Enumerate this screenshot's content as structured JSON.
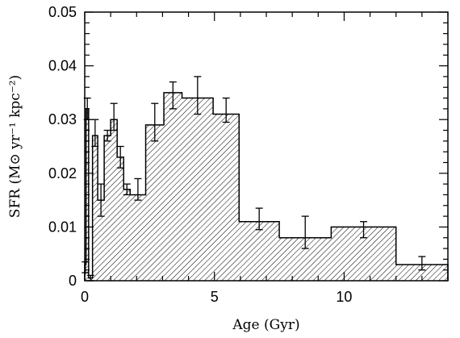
{
  "chart_data": {
    "type": "histogram",
    "title": "",
    "xlabel": "Age (Gyr)",
    "ylabel": "SFR (M⊙ yr⁻¹ kpc⁻²)",
    "xlim": [
      0,
      14
    ],
    "ylim": [
      0,
      0.05
    ],
    "x_ticks": [
      0,
      5,
      10
    ],
    "x_tick_labels": [
      "0",
      "5",
      "10"
    ],
    "y_ticks": [
      0,
      0.01,
      0.02,
      0.03,
      0.04,
      0.05
    ],
    "y_tick_labels": [
      "0",
      "0.01",
      "0.02",
      "0.03",
      "0.04",
      "0.05"
    ],
    "fill": "hatched",
    "grid": false,
    "bins": [
      {
        "x0": 0.0,
        "x1": 0.05,
        "value": 0.003,
        "err_lo": 0.0015,
        "err_hi": 0.0035
      },
      {
        "x0": 0.05,
        "x1": 0.15,
        "value": 0.032,
        "err_lo": 0.03,
        "err_hi": 0.034
      },
      {
        "x0": 0.15,
        "x1": 0.3,
        "value": 0.0005,
        "err_lo": 0.0,
        "err_hi": 0.001
      },
      {
        "x0": 0.3,
        "x1": 0.5,
        "value": 0.027,
        "err_lo": 0.025,
        "err_hi": 0.03
      },
      {
        "x0": 0.5,
        "x1": 0.75,
        "value": 0.015,
        "err_lo": 0.012,
        "err_hi": 0.018
      },
      {
        "x0": 0.75,
        "x1": 1.0,
        "value": 0.027,
        "err_lo": 0.026,
        "err_hi": 0.028
      },
      {
        "x0": 1.0,
        "x1": 1.25,
        "value": 0.03,
        "err_lo": 0.028,
        "err_hi": 0.033
      },
      {
        "x0": 1.25,
        "x1": 1.5,
        "value": 0.023,
        "err_lo": 0.021,
        "err_hi": 0.025
      },
      {
        "x0": 1.5,
        "x1": 1.75,
        "value": 0.017,
        "err_lo": 0.016,
        "err_hi": 0.018
      },
      {
        "x0": 1.75,
        "x1": 2.35,
        "value": 0.016,
        "err_lo": 0.015,
        "err_hi": 0.019
      },
      {
        "x0": 2.35,
        "x1": 3.05,
        "value": 0.029,
        "err_lo": 0.026,
        "err_hi": 0.033
      },
      {
        "x0": 3.05,
        "x1": 3.75,
        "value": 0.035,
        "err_lo": 0.032,
        "err_hi": 0.037
      },
      {
        "x0": 3.75,
        "x1": 4.95,
        "value": 0.034,
        "err_lo": 0.031,
        "err_hi": 0.038
      },
      {
        "x0": 4.95,
        "x1": 5.95,
        "value": 0.031,
        "err_lo": 0.0295,
        "err_hi": 0.034
      },
      {
        "x0": 5.95,
        "x1": 7.5,
        "value": 0.011,
        "err_lo": 0.0095,
        "err_hi": 0.0135
      },
      {
        "x0": 7.5,
        "x1": 9.5,
        "value": 0.008,
        "err_lo": 0.006,
        "err_hi": 0.012
      },
      {
        "x0": 9.5,
        "x1": 12.0,
        "value": 0.01,
        "err_lo": 0.008,
        "err_hi": 0.011
      },
      {
        "x0": 12.0,
        "x1": 14.0,
        "value": 0.003,
        "err_lo": 0.002,
        "err_hi": 0.0045
      }
    ]
  }
}
